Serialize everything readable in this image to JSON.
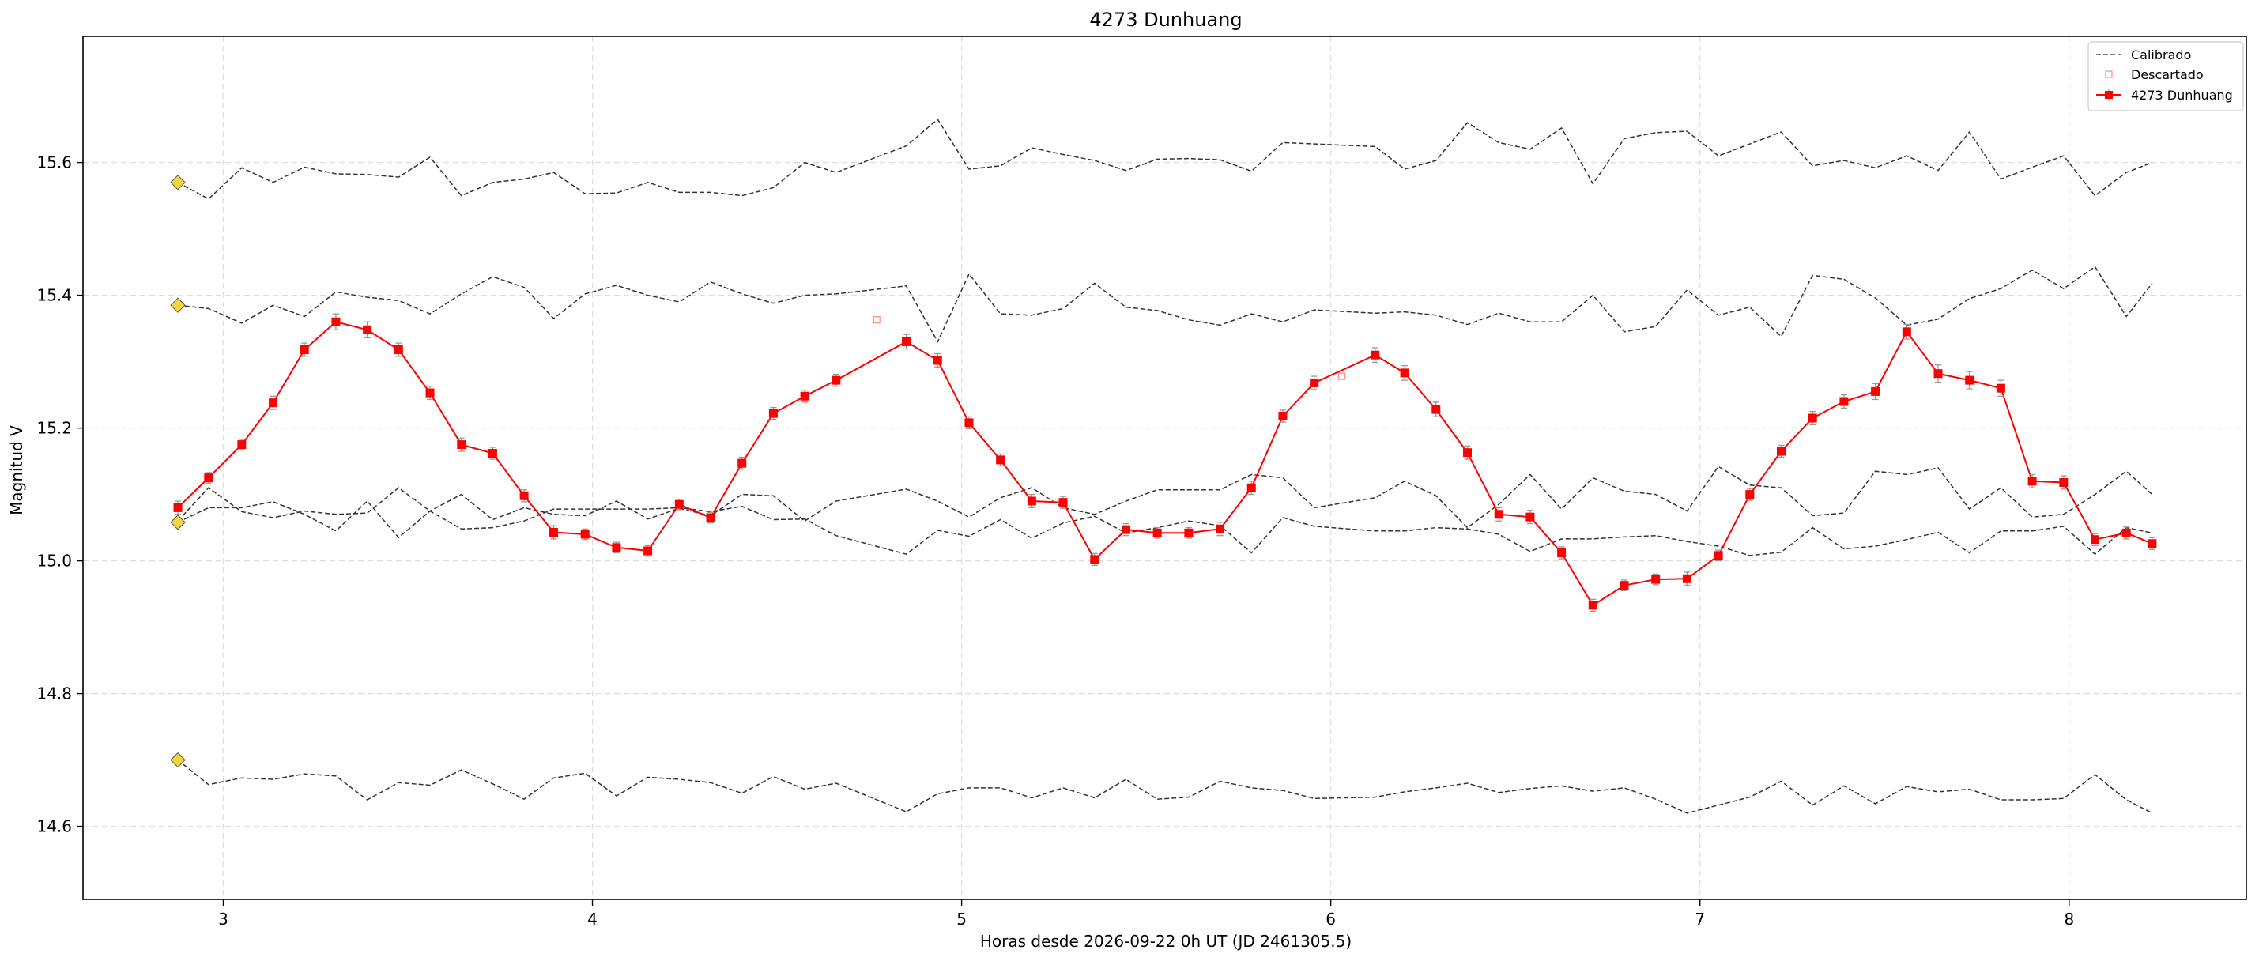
{
  "chart_data": {
    "type": "line",
    "title": "4273 Dunhuang",
    "xlabel": "Horas desde 2026-09-22 0h UT (JD 2461305.5)",
    "ylabel": "Magnitud V",
    "xlim": [
      2.62,
      8.48
    ],
    "ylim": [
      15.79,
      14.49
    ],
    "y_inverted": true,
    "grid": true,
    "x_ticks": [
      3,
      4,
      5,
      6,
      7,
      8
    ],
    "x_tick_labels": [
      "3",
      "4",
      "5",
      "6",
      "7",
      "8"
    ],
    "y_ticks": [
      14.6,
      14.8,
      15.0,
      15.2,
      15.4,
      15.6
    ],
    "y_tick_labels": [
      "14.6",
      "14.8",
      "15.0",
      "15.2",
      "15.4",
      "15.6"
    ],
    "legend_position": "top-right",
    "legend": [
      "Calibrado",
      "Descartado",
      "4273 Dunhuang"
    ],
    "colors": {
      "target": "#ff0000",
      "calibration": "#333333",
      "discarded": "#ff8888",
      "reference_marker": "#f5d442",
      "grid": "#dddddd",
      "errorbar": "#999999"
    },
    "target_series": {
      "name": "4273 Dunhuang",
      "x": [
        2.877,
        2.96,
        3.05,
        3.135,
        3.22,
        3.305,
        3.39,
        3.475,
        3.56,
        3.645,
        3.73,
        3.815,
        3.895,
        3.98,
        4.065,
        4.15,
        4.235,
        4.32,
        4.405,
        4.49,
        4.575,
        4.66,
        4.85,
        4.935,
        5.02,
        5.105,
        5.19,
        5.275,
        5.36,
        5.445,
        5.53,
        5.615,
        5.7,
        5.785,
        5.87,
        5.955,
        6.12,
        6.2,
        6.285,
        6.37,
        6.455,
        6.54,
        6.625,
        6.71,
        6.795,
        6.88,
        6.965,
        7.05,
        7.135,
        7.22,
        7.305,
        7.39,
        7.475,
        7.56,
        7.645,
        7.73,
        7.815,
        7.9,
        7.985,
        8.07,
        8.155,
        8.225
      ],
      "y": [
        15.08,
        15.125,
        15.175,
        15.238,
        15.318,
        15.36,
        15.348,
        15.318,
        15.253,
        15.175,
        15.162,
        15.098,
        15.043,
        15.04,
        15.02,
        15.015,
        15.085,
        15.065,
        15.147,
        15.222,
        15.248,
        15.272,
        15.33,
        15.302,
        15.208,
        15.152,
        15.09,
        15.088,
        15.002,
        15.047,
        15.042,
        15.042,
        15.048,
        15.11,
        15.218,
        15.268,
        15.31,
        15.283,
        15.228,
        15.163,
        15.07,
        15.066,
        15.012,
        14.933,
        14.963,
        14.972,
        14.973,
        15.008,
        15.1,
        15.165,
        15.215,
        15.24,
        15.255,
        15.345,
        15.282,
        15.272,
        15.26,
        15.12,
        15.118,
        15.032,
        15.042,
        15.026
      ],
      "error": [
        0.01,
        0.008,
        0.008,
        0.01,
        0.01,
        0.012,
        0.012,
        0.01,
        0.01,
        0.01,
        0.009,
        0.009,
        0.01,
        0.008,
        0.008,
        0.008,
        0.008,
        0.008,
        0.009,
        0.009,
        0.009,
        0.009,
        0.011,
        0.01,
        0.009,
        0.009,
        0.01,
        0.009,
        0.009,
        0.009,
        0.008,
        0.008,
        0.01,
        0.01,
        0.009,
        0.01,
        0.011,
        0.011,
        0.011,
        0.01,
        0.01,
        0.01,
        0.009,
        0.009,
        0.008,
        0.008,
        0.01,
        0.008,
        0.009,
        0.009,
        0.01,
        0.01,
        0.012,
        0.011,
        0.013,
        0.013,
        0.012,
        0.01,
        0.01,
        0.009,
        0.009,
        0.009
      ]
    },
    "discarded_series": {
      "name": "Descartado",
      "x": [
        4.77,
        6.03
      ],
      "y": [
        15.363,
        15.278
      ]
    },
    "calibration_series": [
      {
        "x": [
          2.877,
          2.96,
          3.05,
          3.135,
          3.22,
          3.305,
          3.39,
          3.475,
          3.56,
          3.645,
          3.73,
          3.815,
          3.895,
          3.98,
          4.065,
          4.15,
          4.235,
          4.32,
          4.405,
          4.49,
          4.575,
          4.66,
          4.85,
          4.935,
          5.02,
          5.105,
          5.19,
          5.275,
          5.36,
          5.445,
          5.53,
          5.615,
          5.7,
          5.785,
          5.87,
          5.955,
          6.12,
          6.2,
          6.285,
          6.37,
          6.455,
          6.54,
          6.625,
          6.71,
          6.795,
          6.88,
          6.965,
          7.05,
          7.135,
          7.22,
          7.305,
          7.39,
          7.475,
          7.56,
          7.645,
          7.73,
          7.815,
          7.9,
          7.985,
          8.07,
          8.155,
          8.225
        ],
        "y": [
          14.7,
          14.663,
          14.673,
          14.671,
          14.679,
          14.676,
          14.64,
          14.666,
          14.662,
          14.685,
          14.664,
          14.641,
          14.673,
          14.68,
          14.646,
          14.674,
          14.671,
          14.666,
          14.65,
          14.675,
          14.656,
          14.665,
          14.622,
          14.649,
          14.658,
          14.658,
          14.643,
          14.658,
          14.643,
          14.671,
          14.641,
          14.644,
          14.668,
          14.658,
          14.654,
          14.642,
          14.644,
          14.652,
          14.658,
          14.665,
          14.651,
          14.657,
          14.661,
          14.653,
          14.658,
          14.641,
          14.62,
          14.632,
          14.644,
          14.668,
          14.632,
          14.661,
          14.634,
          14.66,
          14.652,
          14.656,
          14.64,
          14.64,
          14.642,
          14.678,
          14.64,
          14.62
        ]
      },
      {
        "x": [
          2.877,
          2.96,
          3.05,
          3.135,
          3.22,
          3.305,
          3.39,
          3.475,
          3.56,
          3.645,
          3.73,
          3.815,
          3.895,
          3.98,
          4.065,
          4.15,
          4.235,
          4.32,
          4.405,
          4.49,
          4.575,
          4.66,
          4.85,
          4.935,
          5.02,
          5.105,
          5.19,
          5.275,
          5.36,
          5.445,
          5.53,
          5.615,
          5.7,
          5.785,
          5.87,
          5.955,
          6.12,
          6.2,
          6.285,
          6.37,
          6.455,
          6.54,
          6.625,
          6.71,
          6.795,
          6.88,
          6.965,
          7.05,
          7.135,
          7.22,
          7.305,
          7.39,
          7.475,
          7.56,
          7.645,
          7.73,
          7.815,
          7.9,
          7.985,
          8.07,
          8.155,
          8.225
        ],
        "y": [
          15.058,
          15.08,
          15.08,
          15.089,
          15.07,
          15.045,
          15.09,
          15.035,
          15.075,
          15.1,
          15.062,
          15.08,
          15.07,
          15.068,
          15.09,
          15.063,
          15.079,
          15.068,
          15.1,
          15.098,
          15.06,
          15.09,
          15.108,
          15.09,
          15.066,
          15.095,
          15.11,
          15.08,
          15.07,
          15.09,
          15.107,
          15.107,
          15.107,
          15.13,
          15.125,
          15.08,
          15.095,
          15.12,
          15.098,
          15.05,
          15.085,
          15.13,
          15.078,
          15.125,
          15.105,
          15.1,
          15.075,
          15.142,
          15.114,
          15.11,
          15.068,
          15.072,
          15.135,
          15.13,
          15.14,
          15.078,
          15.11,
          15.066,
          15.07,
          15.1,
          15.135,
          15.1
        ]
      },
      {
        "x": [
          2.877,
          2.96,
          3.05,
          3.135,
          3.22,
          3.305,
          3.39,
          3.475,
          3.56,
          3.645,
          3.73,
          3.815,
          3.895,
          3.98,
          4.065,
          4.15,
          4.235,
          4.32,
          4.405,
          4.49,
          4.575,
          4.66,
          4.85,
          4.935,
          5.02,
          5.105,
          5.19,
          5.275,
          5.36,
          5.445,
          5.53,
          5.615,
          5.7,
          5.785,
          5.87,
          5.955,
          6.12,
          6.2,
          6.285,
          6.37,
          6.455,
          6.54,
          6.625,
          6.71,
          6.795,
          6.88,
          6.965,
          7.05,
          7.135,
          7.22,
          7.305,
          7.39,
          7.475,
          7.56,
          7.645,
          7.73,
          7.815,
          7.9,
          7.985,
          8.07,
          8.155,
          8.225
        ],
        "y": [
          15.06,
          15.11,
          15.074,
          15.065,
          15.075,
          15.07,
          15.072,
          15.11,
          15.075,
          15.048,
          15.05,
          15.06,
          15.078,
          15.078,
          15.078,
          15.078,
          15.08,
          15.074,
          15.082,
          15.062,
          15.063,
          15.038,
          15.01,
          15.046,
          15.037,
          15.062,
          15.034,
          15.057,
          15.067,
          15.042,
          15.05,
          15.06,
          15.053,
          15.012,
          15.065,
          15.052,
          15.045,
          15.045,
          15.05,
          15.048,
          15.04,
          15.014,
          15.033,
          15.033,
          15.036,
          15.038,
          15.029,
          15.022,
          15.008,
          15.013,
          15.05,
          15.018,
          15.022,
          15.032,
          15.043,
          15.012,
          15.045,
          15.045,
          15.052,
          15.01,
          15.05,
          15.042
        ]
      },
      {
        "x": [
          2.877,
          2.96,
          3.05,
          3.135,
          3.22,
          3.305,
          3.39,
          3.475,
          3.56,
          3.645,
          3.73,
          3.815,
          3.895,
          3.98,
          4.065,
          4.15,
          4.235,
          4.32,
          4.405,
          4.49,
          4.575,
          4.66,
          4.85,
          4.935,
          5.02,
          5.105,
          5.19,
          5.275,
          5.36,
          5.445,
          5.53,
          5.615,
          5.7,
          5.785,
          5.87,
          5.955,
          6.12,
          6.2,
          6.285,
          6.37,
          6.455,
          6.54,
          6.625,
          6.71,
          6.795,
          6.88,
          6.965,
          7.05,
          7.135,
          7.22,
          7.305,
          7.39,
          7.475,
          7.56,
          7.645,
          7.73,
          7.815,
          7.9,
          7.985,
          8.07,
          8.155,
          8.225
        ],
        "y": [
          15.385,
          15.38,
          15.358,
          15.385,
          15.368,
          15.405,
          15.397,
          15.392,
          15.372,
          15.402,
          15.428,
          15.412,
          15.365,
          15.402,
          15.415,
          15.4,
          15.39,
          15.42,
          15.402,
          15.388,
          15.4,
          15.402,
          15.414,
          15.33,
          15.432,
          15.372,
          15.37,
          15.38,
          15.418,
          15.382,
          15.377,
          15.363,
          15.355,
          15.372,
          15.36,
          15.378,
          15.373,
          15.375,
          15.37,
          15.356,
          15.373,
          15.36,
          15.36,
          15.4,
          15.345,
          15.353,
          15.408,
          15.37,
          15.382,
          15.338,
          15.43,
          15.424,
          15.396,
          15.355,
          15.364,
          15.395,
          15.41,
          15.438,
          15.41,
          15.443,
          15.368,
          15.418
        ]
      },
      {
        "x": [
          2.877,
          2.96,
          3.05,
          3.135,
          3.22,
          3.305,
          3.39,
          3.475,
          3.56,
          3.645,
          3.73,
          3.815,
          3.895,
          3.98,
          4.065,
          4.15,
          4.235,
          4.32,
          4.405,
          4.49,
          4.575,
          4.66,
          4.85,
          4.935,
          5.02,
          5.105,
          5.19,
          5.275,
          5.36,
          5.445,
          5.53,
          5.615,
          5.7,
          5.785,
          5.87,
          5.955,
          6.12,
          6.2,
          6.285,
          6.37,
          6.455,
          6.54,
          6.625,
          6.71,
          6.795,
          6.88,
          6.965,
          7.05,
          7.135,
          7.22,
          7.305,
          7.39,
          7.475,
          7.56,
          7.645,
          7.73,
          7.815,
          7.9,
          7.985,
          8.07,
          8.155,
          8.225
        ],
        "y": [
          15.57,
          15.545,
          15.592,
          15.57,
          15.593,
          15.583,
          15.582,
          15.578,
          15.608,
          15.55,
          15.57,
          15.575,
          15.585,
          15.553,
          15.554,
          15.57,
          15.555,
          15.555,
          15.55,
          15.562,
          15.6,
          15.585,
          15.625,
          15.665,
          15.59,
          15.595,
          15.622,
          15.612,
          15.603,
          15.588,
          15.605,
          15.606,
          15.604,
          15.587,
          15.63,
          15.628,
          15.624,
          15.59,
          15.603,
          15.66,
          15.63,
          15.62,
          15.652,
          15.568,
          15.636,
          15.645,
          15.647,
          15.61,
          15.628,
          15.646,
          15.595,
          15.603,
          15.592,
          15.61,
          15.588,
          15.646,
          15.575,
          15.593,
          15.61,
          15.55,
          15.585,
          15.6
        ]
      }
    ],
    "reference_markers": {
      "x": [
        2.877,
        2.877,
        2.877,
        2.877
      ],
      "y": [
        14.7,
        15.058,
        15.385,
        15.57
      ]
    }
  }
}
